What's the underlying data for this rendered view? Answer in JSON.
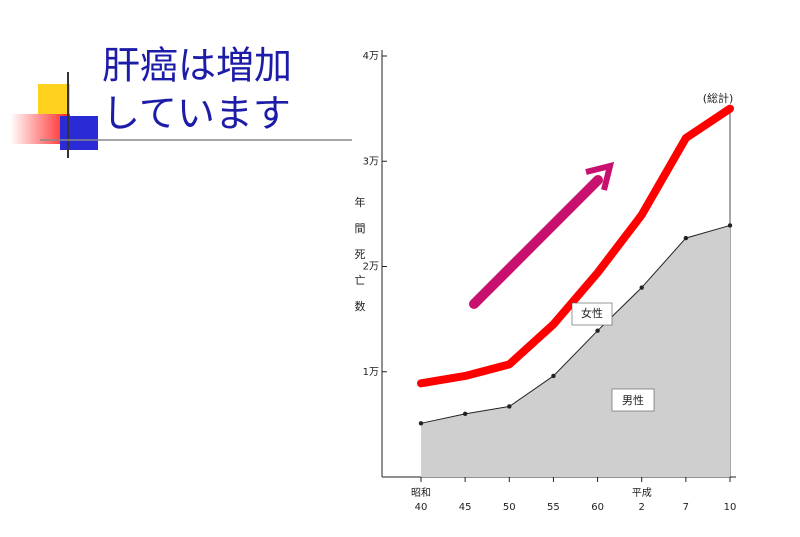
{
  "header": {
    "title_lines": [
      "肝癌は増加",
      "しています"
    ]
  },
  "chart_data": {
    "type": "line",
    "y_label_chars": [
      "年",
      "間",
      "死",
      "亡",
      "数"
    ],
    "categories": [
      [
        "昭和",
        "40"
      ],
      [
        "45"
      ],
      [
        "50"
      ],
      [
        "55"
      ],
      [
        "60"
      ],
      [
        "平成",
        "2"
      ],
      [
        "7"
      ],
      [
        "10"
      ]
    ],
    "series": [
      {
        "name": "(総計)",
        "color": "#ff0000",
        "values": [
          8900,
          9600,
          10700,
          14500,
          19400,
          24900,
          32200,
          35000
        ]
      },
      {
        "name": "男性",
        "color": "#222222",
        "values": [
          5100,
          6000,
          6700,
          9600,
          13900,
          18000,
          22700,
          23900
        ]
      }
    ],
    "region_label": "女性",
    "ylim": [
      0,
      40000
    ],
    "yticks": [
      {
        "value": 10000,
        "label": "1万"
      },
      {
        "value": 20000,
        "label": "2万"
      },
      {
        "value": 30000,
        "label": "3万"
      },
      {
        "value": 40000,
        "label": "4万"
      }
    ]
  }
}
